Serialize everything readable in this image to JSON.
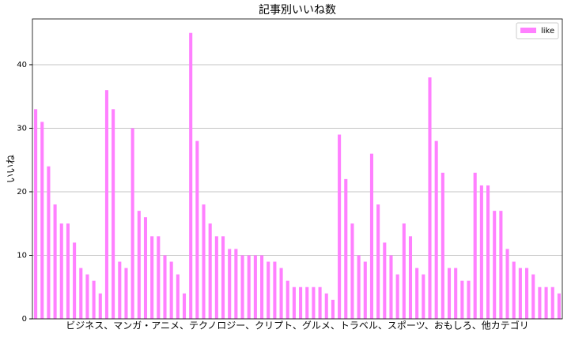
{
  "chart_data": {
    "type": "bar",
    "title": "記事別いいね数",
    "x_label": "ビジネス、マンガ・アニメ、テクノロジー、クリプト、グルメ、トラベル、スポーツ、おもしろ、他カテゴリ",
    "y_label": "いいね",
    "series": [
      {
        "name": "like",
        "color": "#ff80ff",
        "values": [
          33,
          31,
          24,
          18,
          15,
          15,
          12,
          8,
          7,
          6,
          4,
          36,
          33,
          9,
          8,
          30,
          17,
          16,
          13,
          13,
          10,
          9,
          7,
          4,
          45,
          28,
          18,
          15,
          13,
          13,
          11,
          11,
          10,
          10,
          10,
          10,
          9,
          9,
          8,
          6,
          5,
          5,
          5,
          5,
          5,
          4,
          3,
          29,
          22,
          15,
          10,
          9,
          26,
          18,
          12,
          10,
          7,
          15,
          13,
          8,
          7,
          38,
          28,
          23,
          8,
          8,
          6,
          6,
          23,
          21,
          21,
          17,
          17,
          11,
          9,
          8,
          8,
          7,
          5,
          5,
          5,
          4
        ]
      }
    ],
    "ylim": [
      0,
      47.2
    ],
    "yticks": [
      0,
      10,
      20,
      30,
      40
    ],
    "grid": true,
    "legend": "upper right"
  }
}
